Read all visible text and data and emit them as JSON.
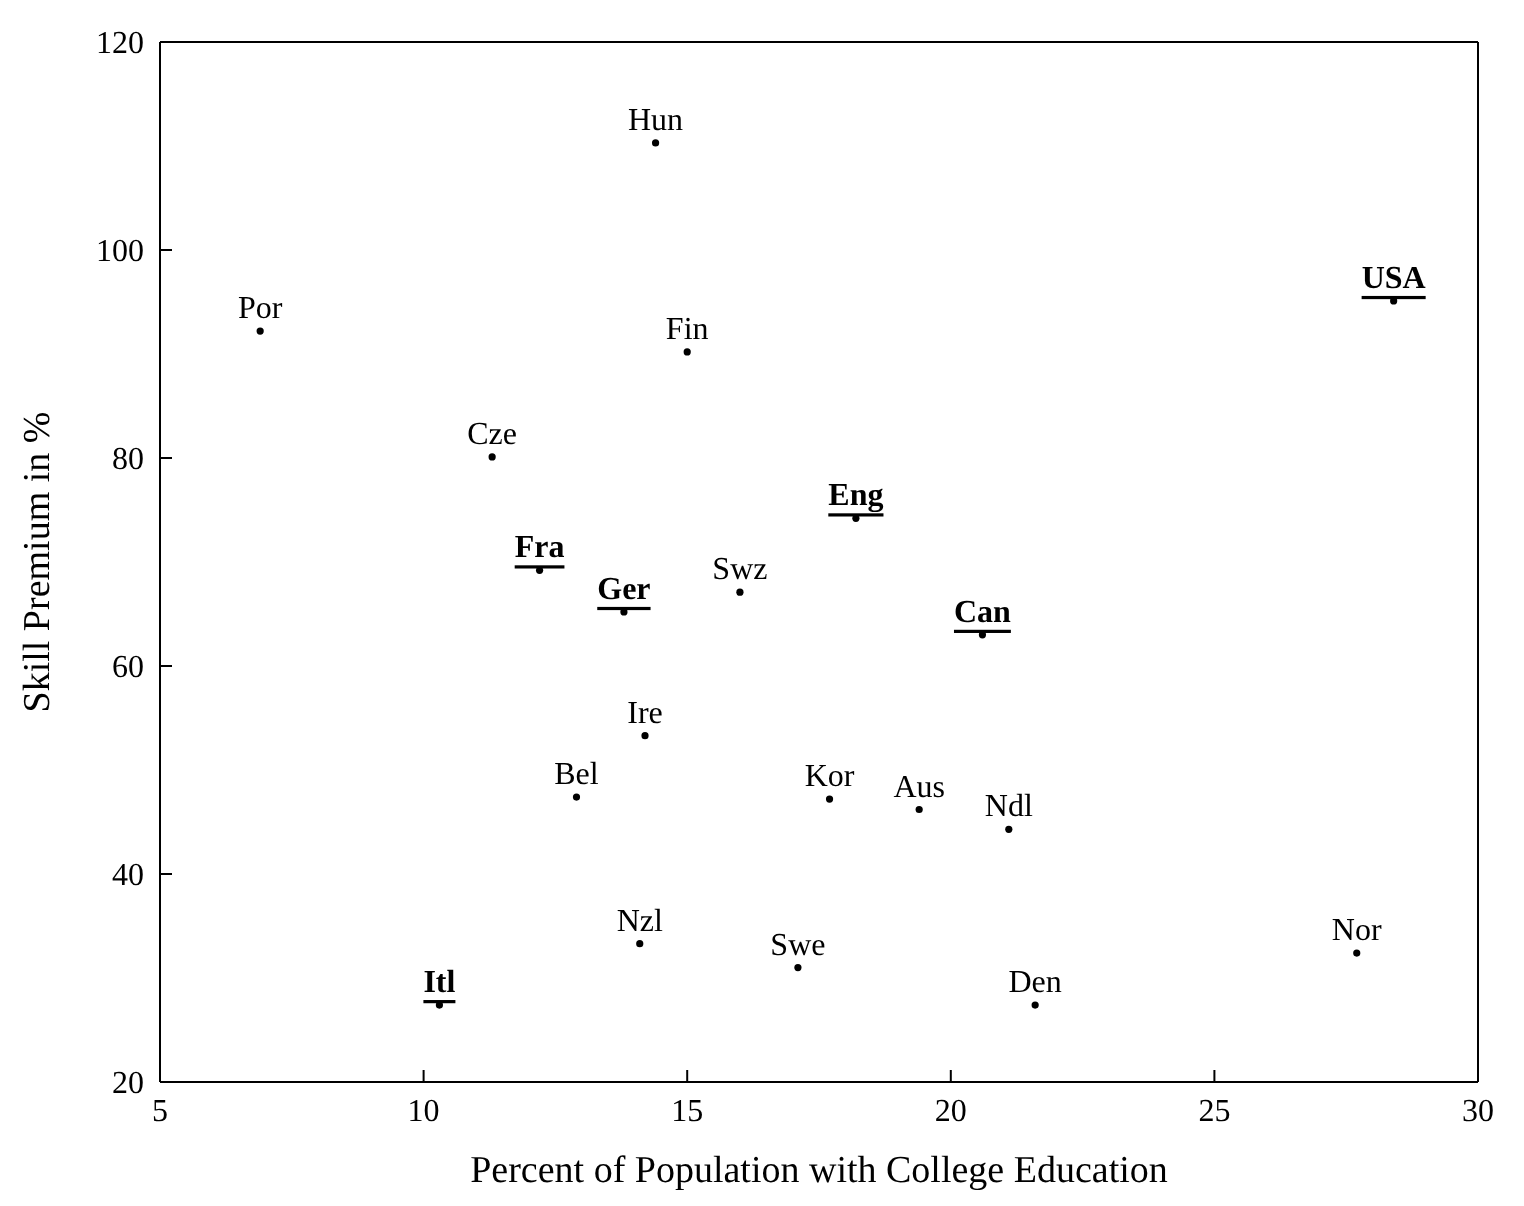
{
  "chart_data": {
    "type": "scatter",
    "xlabel": "Percent of Population with College Education",
    "ylabel": "Skill Premium in %",
    "xlim": [
      5,
      30
    ],
    "xticks": [
      5,
      10,
      15,
      20,
      25,
      30
    ],
    "ylim": [
      20,
      120
    ],
    "yticks": [
      20,
      40,
      60,
      80,
      100,
      120
    ],
    "grid": false,
    "marker": "circle",
    "series": [
      {
        "color": "#000000",
        "x": [
          14.4,
          6.9,
          15.0,
          11.3,
          16.0,
          14.2,
          12.9,
          17.7,
          19.4,
          21.1,
          14.1,
          17.1,
          27.7,
          21.6
        ],
        "values": [
          110.3,
          92.2,
          90.2,
          80.1,
          67.1,
          53.3,
          47.4,
          47.2,
          46.2,
          44.3,
          33.3,
          31.0,
          32.4,
          27.4
        ],
        "value_labels": [
          "Hun",
          "Por",
          "Fin",
          "Cze",
          "Swz",
          "Ire",
          "Bel",
          "Kor",
          "Aus",
          "Ndl",
          "Nzl",
          "Swe",
          "Nor",
          "Den"
        ]
      },
      {
        "color": "#000000",
        "x": [
          28.4,
          18.2,
          12.2,
          13.8,
          20.6,
          10.3
        ],
        "values": [
          95.1,
          74.2,
          69.2,
          65.2,
          63.0,
          27.4
        ],
        "value_labels": [
          "USA",
          "Eng",
          "Fra",
          "Ger",
          "Can",
          "Itl"
        ]
      }
    ]
  }
}
